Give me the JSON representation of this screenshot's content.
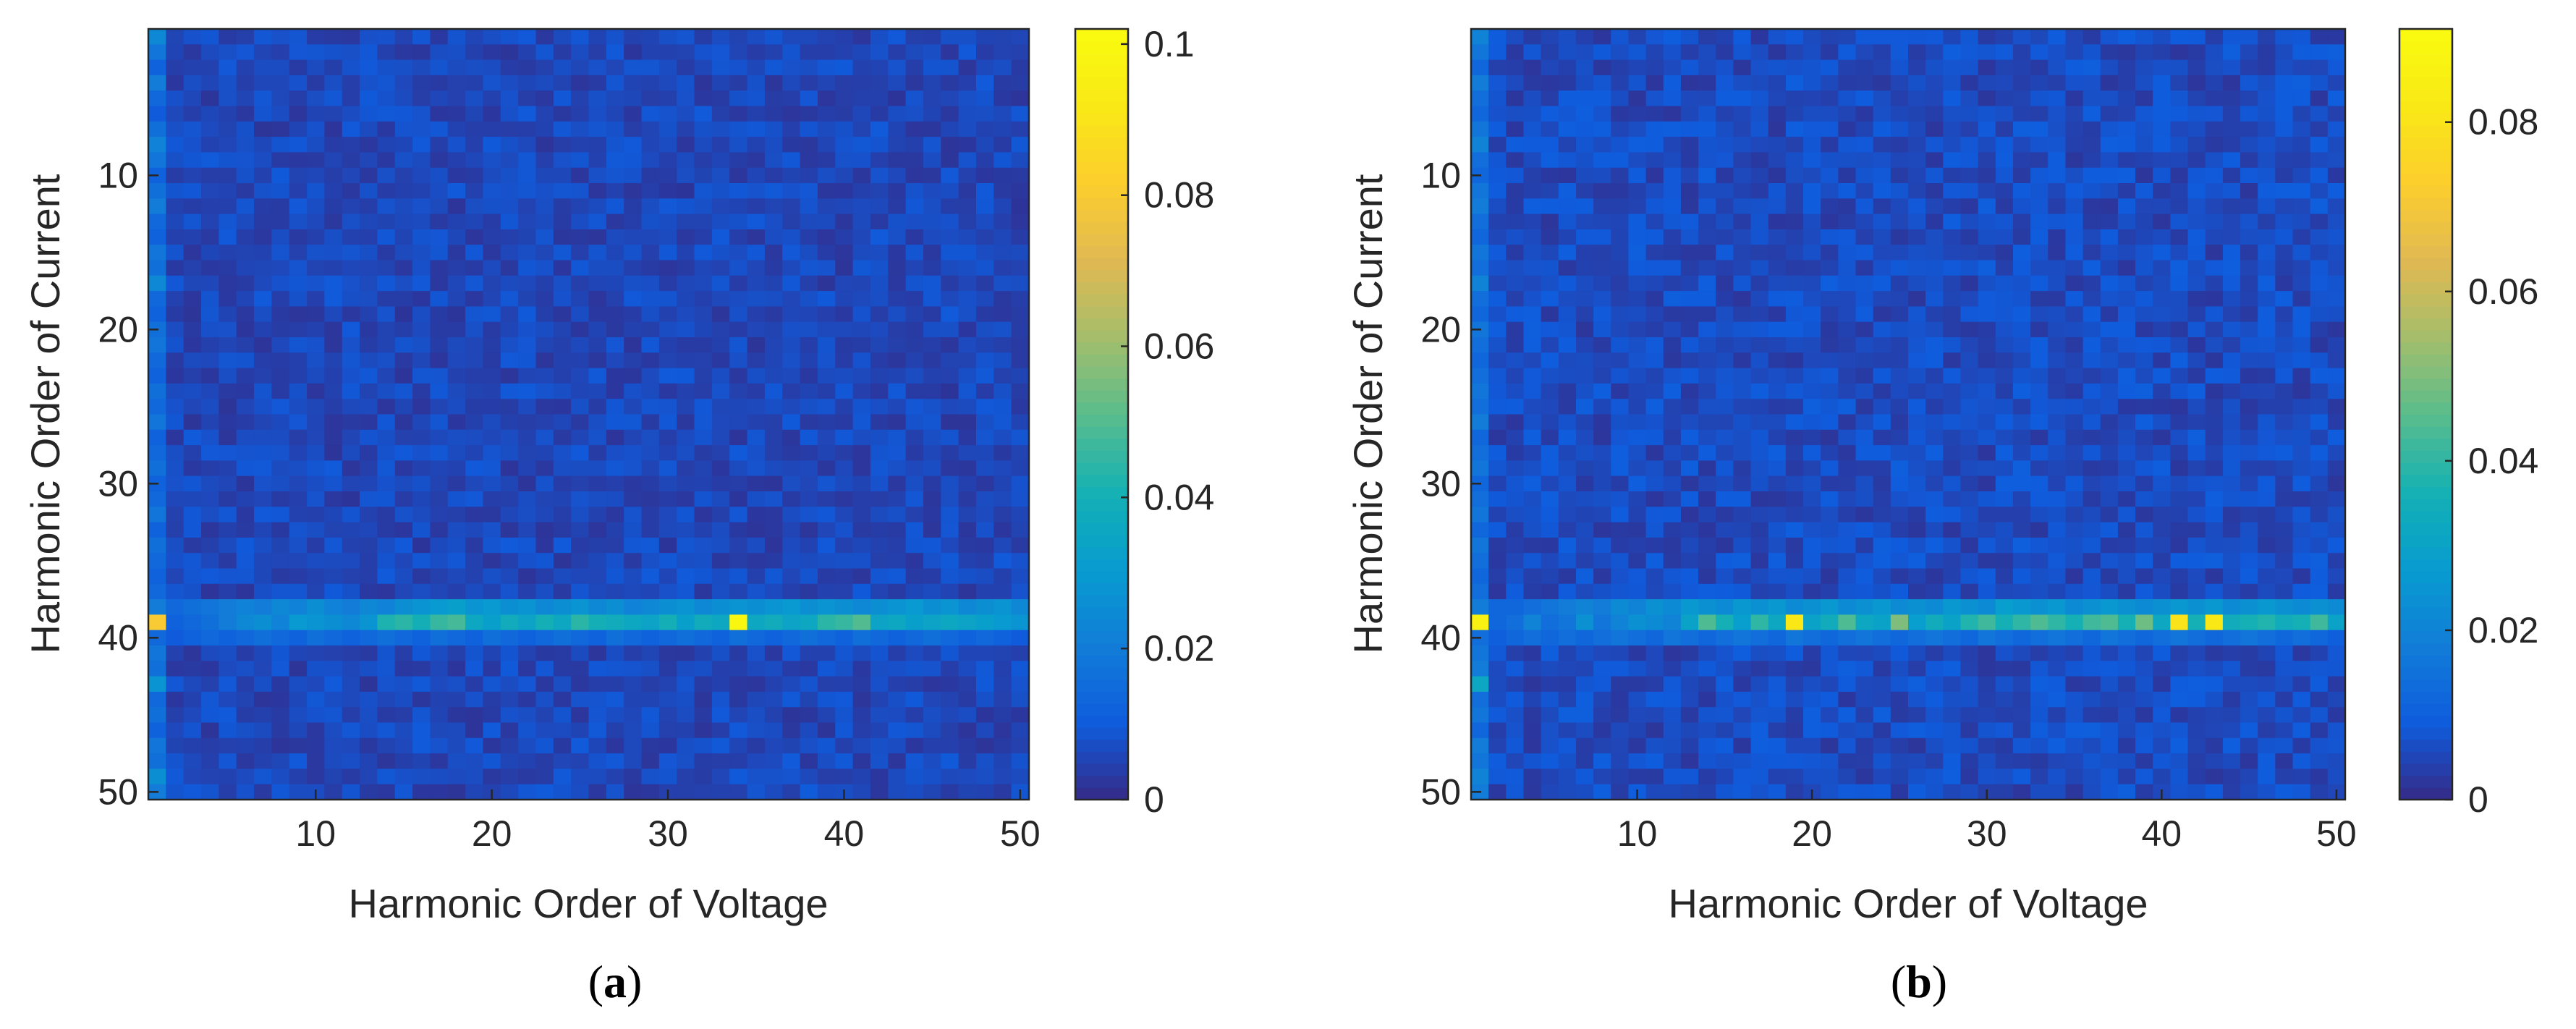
{
  "chart_data": [
    {
      "type": "heatmap",
      "panel_label": "a",
      "xlabel": "Harmonic Order of Voltage",
      "ylabel": "Harmonic Order of Current",
      "xlim": [
        1,
        50
      ],
      "ylim": [
        1,
        50
      ],
      "y_inverted": true,
      "x_ticks": [
        10,
        20,
        30,
        40,
        50
      ],
      "y_ticks": [
        10,
        20,
        30,
        40,
        50
      ],
      "colorbar": {
        "min": 0,
        "max": 0.102,
        "ticks": [
          0,
          0.02,
          0.04,
          0.06,
          0.08,
          0.1
        ],
        "tick_labels": [
          "0",
          "0.02",
          "0.04",
          "0.06",
          "0.08",
          "0.1"
        ],
        "colormap": "parula"
      },
      "background_level": 0.006,
      "left_column_values": [
        0.024,
        0.018,
        0.012,
        0.02,
        0.014,
        0.01,
        0.016,
        0.022,
        0.018,
        0.012,
        0.016,
        0.02,
        0.014,
        0.012,
        0.018,
        0.016,
        0.024,
        0.014,
        0.012,
        0.016,
        0.018,
        0.014,
        0.012,
        0.016,
        0.014,
        0.018,
        0.012,
        0.014,
        0.016,
        0.012,
        0.014,
        0.018,
        0.012,
        0.016,
        0.014,
        0.012,
        0.014,
        0.02,
        0.08,
        0.014,
        0.018,
        0.016,
        0.028,
        0.014,
        0.016,
        0.012,
        0.018,
        0.016,
        0.026,
        0.02
      ],
      "row_38": [
        0.012,
        0.014,
        0.016,
        0.018,
        0.02,
        0.022,
        0.02,
        0.024,
        0.022,
        0.026,
        0.022,
        0.02,
        0.024,
        0.022,
        0.026,
        0.028,
        0.03,
        0.032,
        0.028,
        0.03,
        0.026,
        0.028,
        0.024,
        0.026,
        0.028,
        0.024,
        0.026,
        0.022,
        0.024,
        0.026,
        0.028,
        0.024,
        0.026,
        0.028,
        0.026,
        0.028,
        0.03,
        0.026,
        0.028,
        0.026,
        0.024,
        0.026,
        0.028,
        0.03,
        0.026,
        0.028,
        0.024,
        0.026,
        0.028,
        0.024
      ],
      "row_39": [
        0.082,
        0.012,
        0.014,
        0.016,
        0.02,
        0.024,
        0.026,
        0.022,
        0.03,
        0.028,
        0.026,
        0.024,
        0.028,
        0.042,
        0.044,
        0.04,
        0.046,
        0.048,
        0.036,
        0.032,
        0.038,
        0.034,
        0.04,
        0.036,
        0.044,
        0.04,
        0.038,
        0.036,
        0.034,
        0.04,
        0.032,
        0.038,
        0.036,
        0.1,
        0.036,
        0.038,
        0.034,
        0.036,
        0.044,
        0.046,
        0.05,
        0.034,
        0.036,
        0.032,
        0.034,
        0.036,
        0.034,
        0.032,
        0.03,
        0.028
      ],
      "row_40": [
        0.012,
        0.01,
        0.012,
        0.014,
        0.012,
        0.014,
        0.016,
        0.014,
        0.012,
        0.016,
        0.014,
        0.012,
        0.014,
        0.016,
        0.014,
        0.012,
        0.016,
        0.014,
        0.012,
        0.016,
        0.014,
        0.012,
        0.014,
        0.016,
        0.014,
        0.012,
        0.016,
        0.014,
        0.012,
        0.014,
        0.016,
        0.014,
        0.012,
        0.016,
        0.014,
        0.012,
        0.014,
        0.016,
        0.014,
        0.012,
        0.016,
        0.014,
        0.012,
        0.014,
        0.016,
        0.014,
        0.012,
        0.014,
        0.012,
        0.01
      ]
    },
    {
      "type": "heatmap",
      "panel_label": "b",
      "xlabel": "Harmonic Order of Voltage",
      "ylabel": "Harmonic Order of Current",
      "xlim": [
        1,
        50
      ],
      "ylim": [
        1,
        50
      ],
      "y_inverted": true,
      "x_ticks": [
        10,
        20,
        30,
        40,
        50
      ],
      "y_ticks": [
        10,
        20,
        30,
        40,
        50
      ],
      "colorbar": {
        "min": 0,
        "max": 0.091,
        "ticks": [
          0,
          0.02,
          0.04,
          0.06,
          0.08
        ],
        "tick_labels": [
          "0",
          "0.02",
          "0.04",
          "0.06",
          "0.08"
        ],
        "colormap": "parula"
      },
      "background_level": 0.006,
      "left_column_values": [
        0.02,
        0.016,
        0.012,
        0.018,
        0.014,
        0.012,
        0.016,
        0.02,
        0.014,
        0.012,
        0.016,
        0.018,
        0.014,
        0.012,
        0.016,
        0.014,
        0.02,
        0.014,
        0.012,
        0.016,
        0.014,
        0.012,
        0.014,
        0.016,
        0.014,
        0.018,
        0.012,
        0.014,
        0.016,
        0.012,
        0.014,
        0.016,
        0.012,
        0.016,
        0.014,
        0.012,
        0.014,
        0.018,
        0.086,
        0.014,
        0.016,
        0.018,
        0.032,
        0.014,
        0.016,
        0.012,
        0.018,
        0.016,
        0.02,
        0.018
      ],
      "row_38": [
        0.01,
        0.012,
        0.012,
        0.014,
        0.016,
        0.018,
        0.02,
        0.018,
        0.022,
        0.02,
        0.024,
        0.022,
        0.026,
        0.024,
        0.022,
        0.026,
        0.024,
        0.026,
        0.022,
        0.024,
        0.026,
        0.022,
        0.024,
        0.026,
        0.022,
        0.024,
        0.022,
        0.026,
        0.024,
        0.022,
        0.028,
        0.026,
        0.024,
        0.026,
        0.022,
        0.024,
        0.026,
        0.024,
        0.022,
        0.024,
        0.026,
        0.024,
        0.026,
        0.022,
        0.024,
        0.026,
        0.024,
        0.022,
        0.024,
        0.022
      ],
      "row_39": [
        0.084,
        0.012,
        0.014,
        0.02,
        0.014,
        0.016,
        0.024,
        0.016,
        0.02,
        0.024,
        0.022,
        0.02,
        0.03,
        0.044,
        0.036,
        0.028,
        0.04,
        0.032,
        0.082,
        0.03,
        0.034,
        0.044,
        0.032,
        0.03,
        0.05,
        0.028,
        0.034,
        0.03,
        0.038,
        0.042,
        0.036,
        0.04,
        0.044,
        0.04,
        0.036,
        0.042,
        0.044,
        0.036,
        0.048,
        0.032,
        0.08,
        0.036,
        0.082,
        0.034,
        0.036,
        0.038,
        0.034,
        0.036,
        0.042,
        0.03
      ],
      "row_40": [
        0.012,
        0.01,
        0.012,
        0.014,
        0.012,
        0.014,
        0.012,
        0.014,
        0.016,
        0.014,
        0.012,
        0.016,
        0.014,
        0.012,
        0.014,
        0.016,
        0.014,
        0.012,
        0.016,
        0.014,
        0.012,
        0.014,
        0.016,
        0.014,
        0.012,
        0.014,
        0.016,
        0.014,
        0.012,
        0.016,
        0.014,
        0.012,
        0.014,
        0.016,
        0.014,
        0.012,
        0.016,
        0.014,
        0.012,
        0.014,
        0.016,
        0.014,
        0.012,
        0.014,
        0.016,
        0.014,
        0.012,
        0.014,
        0.012,
        0.01
      ]
    }
  ]
}
